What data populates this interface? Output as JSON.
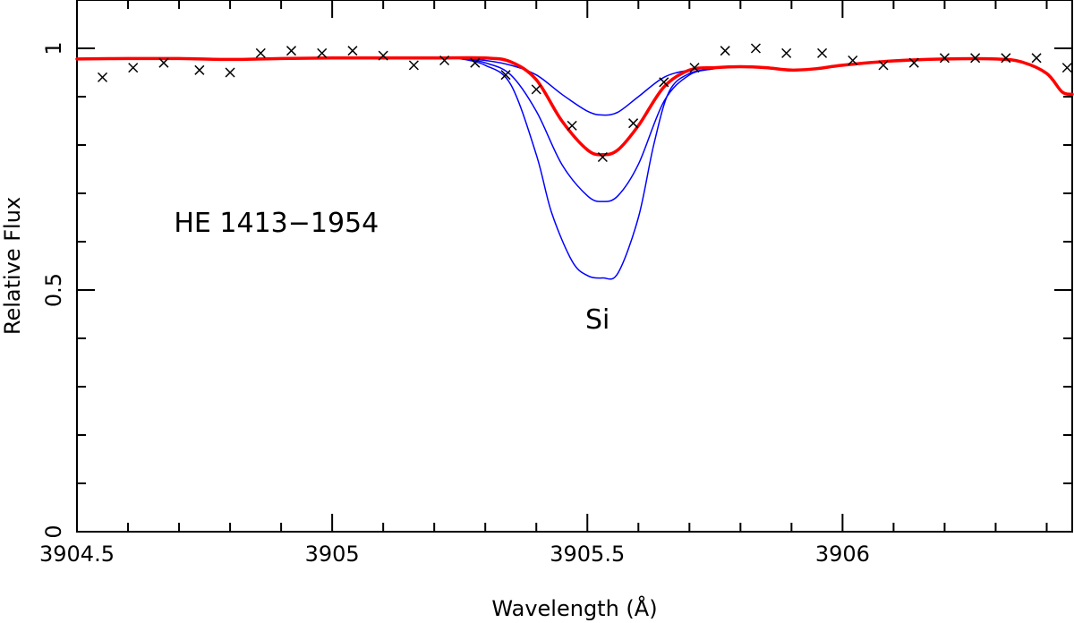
{
  "chart_data": {
    "type": "line",
    "title": "",
    "xlabel": "Wavelength (Å)",
    "ylabel": "Relative Flux",
    "xlim": [
      3904.5,
      3906.45
    ],
    "ylim": [
      0,
      1.1
    ],
    "x_ticks": [
      3904.5,
      3905,
      3905.5,
      3906
    ],
    "x_tick_labels": [
      "3904.5",
      "3905",
      "3905.5",
      "3906"
    ],
    "y_ticks": [
      0,
      0.5,
      1
    ],
    "y_tick_labels": [
      "0",
      "0.5",
      "1"
    ],
    "grid": false,
    "legend": "none",
    "annotations": [
      {
        "text": "HE 1413−1954",
        "x": 3904.69,
        "y": 0.62
      },
      {
        "text": "Si",
        "x": 3905.52,
        "y": 0.42
      }
    ],
    "series": [
      {
        "kind": "observed",
        "marker": "x",
        "color": "#000000",
        "x": [
          3904.55,
          3904.61,
          3904.67,
          3904.74,
          3904.8,
          3904.86,
          3904.92,
          3904.98,
          3905.04,
          3905.1,
          3905.16,
          3905.22,
          3905.28,
          3905.34,
          3905.4,
          3905.47,
          3905.53,
          3905.59,
          3905.65,
          3905.71,
          3905.77,
          3905.83,
          3905.89,
          3905.96,
          3906.02,
          3906.08,
          3906.14,
          3906.2,
          3906.26,
          3906.32,
          3906.38,
          3906.44
        ],
        "y": [
          0.94,
          0.96,
          0.97,
          0.955,
          0.95,
          0.99,
          0.995,
          0.99,
          0.995,
          0.985,
          0.965,
          0.975,
          0.97,
          0.945,
          0.915,
          0.84,
          0.775,
          0.845,
          0.93,
          0.96,
          0.995,
          1.0,
          0.99,
          0.99,
          0.975,
          0.965,
          0.97,
          0.98,
          0.98,
          0.98,
          0.98,
          0.96
        ]
      },
      {
        "kind": "best-fit",
        "color": "#ff0000",
        "x": [
          3904.5,
          3904.6,
          3904.7,
          3904.8,
          3904.9,
          3905.0,
          3905.1,
          3905.2,
          3905.3,
          3905.35,
          3905.4,
          3905.45,
          3905.5,
          3905.53,
          3905.56,
          3905.6,
          3905.65,
          3905.7,
          3905.75,
          3905.8,
          3905.85,
          3905.9,
          3905.95,
          3906.0,
          3906.1,
          3906.2,
          3906.3,
          3906.35,
          3906.4,
          3906.43,
          3906.45
        ],
        "y": [
          0.978,
          0.979,
          0.979,
          0.977,
          0.979,
          0.98,
          0.98,
          0.98,
          0.98,
          0.972,
          0.935,
          0.85,
          0.79,
          0.78,
          0.79,
          0.84,
          0.92,
          0.955,
          0.96,
          0.962,
          0.96,
          0.955,
          0.958,
          0.965,
          0.974,
          0.978,
          0.978,
          0.972,
          0.948,
          0.91,
          0.905
        ]
      },
      {
        "kind": "synthetic",
        "color": "#0000ff",
        "x": [
          3905.25,
          3905.3,
          3905.35,
          3905.4,
          3905.45,
          3905.5,
          3905.53,
          3905.56,
          3905.6,
          3905.65,
          3905.7,
          3905.75
        ],
        "y": [
          0.979,
          0.975,
          0.965,
          0.945,
          0.905,
          0.87,
          0.862,
          0.868,
          0.9,
          0.94,
          0.955,
          0.96
        ]
      },
      {
        "kind": "synthetic",
        "color": "#0000ff",
        "x": [
          3905.25,
          3905.3,
          3905.35,
          3905.4,
          3905.45,
          3905.5,
          3905.53,
          3905.56,
          3905.6,
          3905.65,
          3905.7,
          3905.75
        ],
        "y": [
          0.979,
          0.97,
          0.945,
          0.87,
          0.76,
          0.695,
          0.683,
          0.695,
          0.76,
          0.89,
          0.945,
          0.958
        ]
      },
      {
        "kind": "synthetic",
        "color": "#0000ff",
        "x": [
          3905.25,
          3905.3,
          3905.35,
          3905.4,
          3905.43,
          3905.47,
          3905.5,
          3905.53,
          3905.56,
          3905.6,
          3905.63,
          3905.66,
          3905.7,
          3905.75
        ],
        "y": [
          0.979,
          0.965,
          0.925,
          0.78,
          0.66,
          0.56,
          0.53,
          0.525,
          0.535,
          0.65,
          0.8,
          0.91,
          0.948,
          0.958
        ]
      }
    ]
  }
}
